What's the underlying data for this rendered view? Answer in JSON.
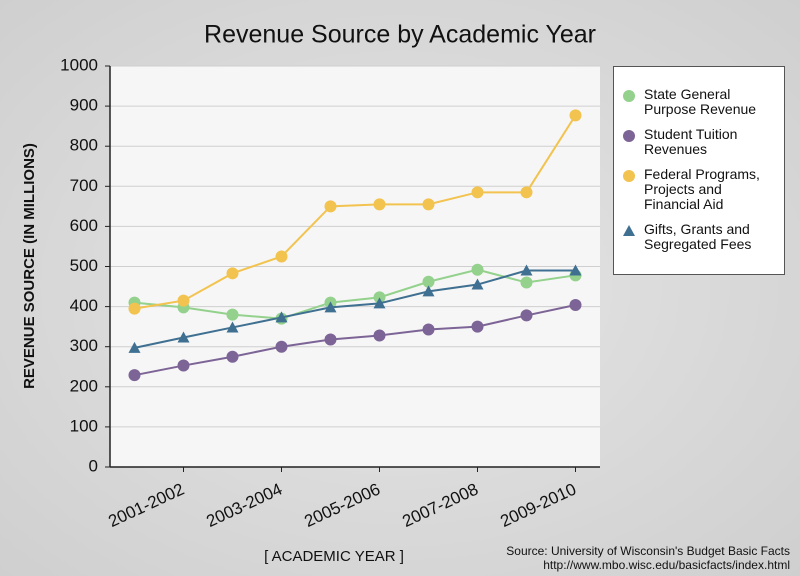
{
  "chart_data": {
    "type": "line",
    "title": "Revenue Source by Academic Year",
    "y_label": "REVENUE SOURCE (IN MILLIONS)",
    "x_label": "[ ACADEMIC YEAR ]",
    "source": [
      "Source: University of Wisconsin's Budget Basic Facts",
      "http://www.mbo.wisc.edu/basicfacts/index.html"
    ],
    "categories": [
      null,
      "2001-2002",
      null,
      "2003-2004",
      null,
      "2005-2006",
      null,
      "2007-2008",
      null,
      "2009-2010"
    ],
    "ylim": [
      0,
      1000
    ],
    "yticks": [
      0,
      100,
      200,
      300,
      400,
      500,
      600,
      700,
      800,
      900,
      1000
    ],
    "grid": true,
    "legend": "right",
    "series": [
      {
        "name": "State General Purpose Revenue",
        "color": "#93d18c",
        "marker": "circle",
        "values": [
          410,
          398,
          380,
          370,
          410,
          423,
          462,
          492,
          460,
          478
        ]
      },
      {
        "name": "Student Tuition Revenues",
        "color": "#7d6496",
        "marker": "circle",
        "values": [
          229,
          253,
          275,
          300,
          318,
          328,
          343,
          350,
          378,
          404
        ]
      },
      {
        "name": "Federal Programs, Projects and Financial Aid",
        "color": "#f2c34f",
        "marker": "circle",
        "values": [
          395,
          415,
          483,
          525,
          650,
          655,
          655,
          685,
          685,
          877
        ]
      },
      {
        "name": "Gifts, Grants and Segregated Fees",
        "color": "#3f7091",
        "marker": "triangle",
        "values": [
          297,
          323,
          348,
          373,
          398,
          408,
          438,
          455,
          490,
          490
        ]
      }
    ]
  }
}
